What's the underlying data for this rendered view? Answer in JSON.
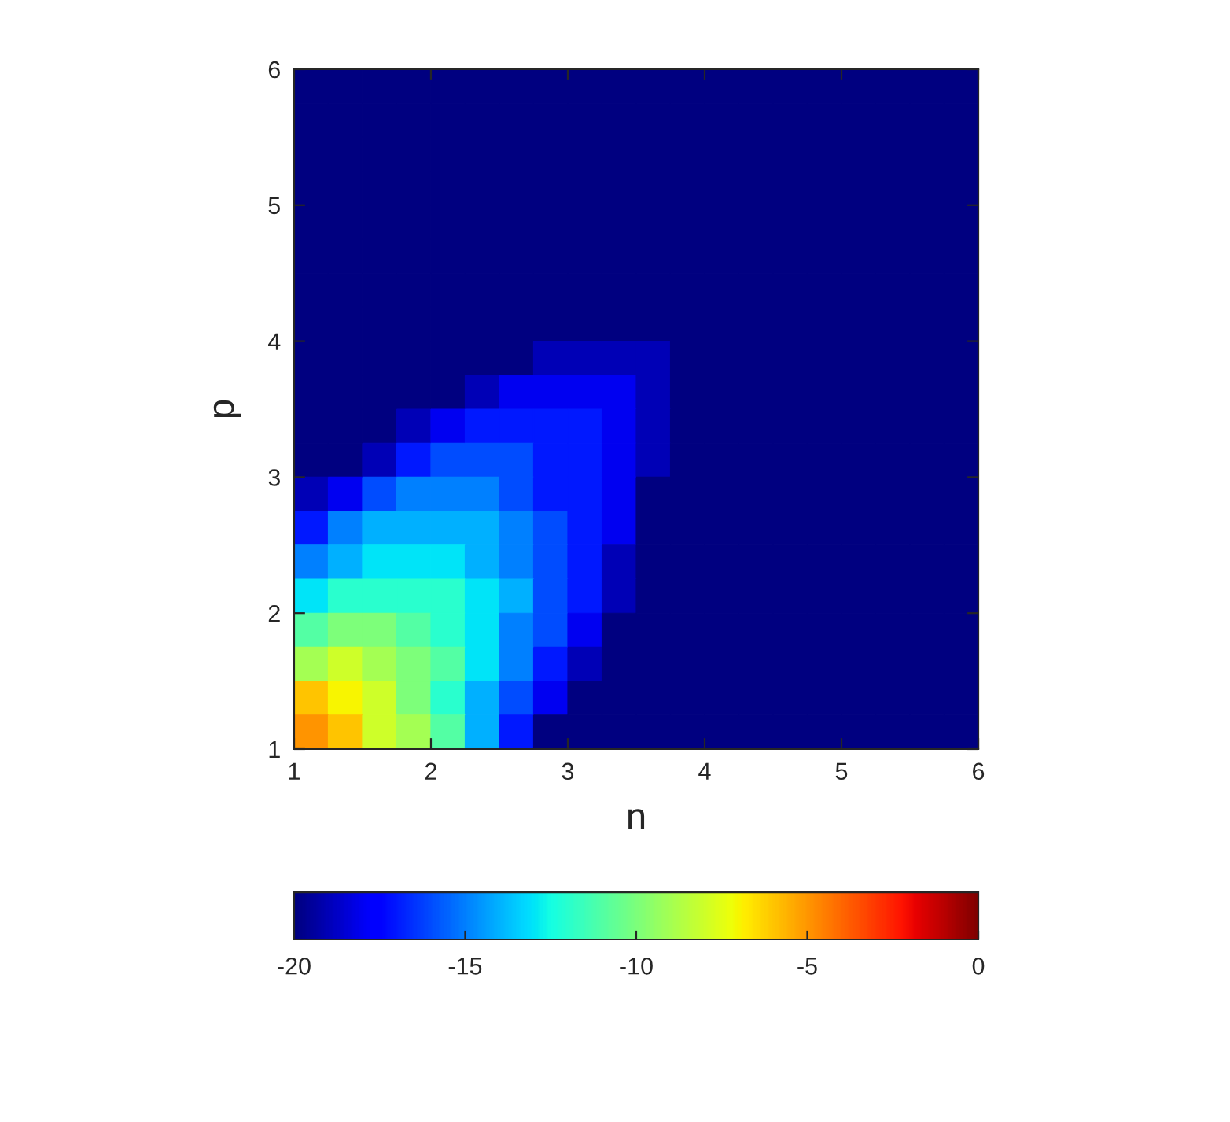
{
  "chart_data": {
    "type": "heatmap",
    "xlabel": "n",
    "ylabel": "p",
    "cells": [
      [
        -20,
        -20,
        -20,
        -20,
        -20,
        -20,
        -20,
        -20,
        -20,
        -20,
        -20,
        -20,
        -20,
        -20,
        -20,
        -20,
        -20,
        -20,
        -20,
        -20
      ],
      [
        -20,
        -20,
        -20,
        -20,
        -20,
        -20,
        -20,
        -20,
        -20,
        -20,
        -20,
        -20,
        -20,
        -20,
        -20,
        -20,
        -20,
        -20,
        -20,
        -20
      ],
      [
        -20,
        -20,
        -20,
        -20,
        -20,
        -20,
        -20,
        -20,
        -20,
        -20,
        -20,
        -20,
        -20,
        -20,
        -20,
        -20,
        -20,
        -20,
        -20,
        -20
      ],
      [
        -20,
        -20,
        -20,
        -20,
        -20,
        -20,
        -20,
        -20,
        -20,
        -20,
        -20,
        -20,
        -20,
        -20,
        -20,
        -20,
        -20,
        -20,
        -20,
        -20
      ],
      [
        -20,
        -20,
        -20,
        -20,
        -20,
        -20,
        -20,
        -20,
        -20,
        -20,
        -20,
        -20,
        -20,
        -20,
        -20,
        -20,
        -20,
        -20,
        -20,
        -20
      ],
      [
        -20,
        -20,
        -20,
        -20,
        -20,
        -20,
        -20,
        -20,
        -20,
        -20,
        -20,
        -20,
        -20,
        -20,
        -20,
        -20,
        -20,
        -20,
        -20,
        -20
      ],
      [
        -20,
        -20,
        -20,
        -20,
        -20,
        -20,
        -20,
        -20,
        -20,
        -20,
        -20,
        -20,
        -20,
        -20,
        -20,
        -20,
        -20,
        -20,
        -20,
        -20
      ],
      [
        -20,
        -20,
        -20,
        -20,
        -20,
        -20,
        -20,
        -20,
        -20,
        -20,
        -20,
        -20,
        -20,
        -20,
        -20,
        -20,
        -20,
        -20,
        -20,
        -20
      ],
      [
        -20,
        -20,
        -20,
        -20,
        -20,
        -20,
        -20,
        -19,
        -19,
        -19,
        -19,
        -20,
        -20,
        -20,
        -20,
        -20,
        -20,
        -20,
        -20,
        -20
      ],
      [
        -20,
        -20,
        -20,
        -20,
        -20,
        -19,
        -18,
        -18,
        -18,
        -18,
        -19,
        -20,
        -20,
        -20,
        -20,
        -20,
        -20,
        -20,
        -20,
        -20
      ],
      [
        -20,
        -20,
        -20,
        -19,
        -18,
        -17,
        -17,
        -17,
        -17,
        -18,
        -19,
        -20,
        -20,
        -20,
        -20,
        -20,
        -20,
        -20,
        -20,
        -20
      ],
      [
        -20,
        -20,
        -19,
        -17,
        -16,
        -16,
        -16,
        -17,
        -17,
        -18,
        -19,
        -20,
        -20,
        -20,
        -20,
        -20,
        -20,
        -20,
        -20,
        -20
      ],
      [
        -19,
        -18,
        -16,
        -15,
        -15,
        -15,
        -16,
        -17,
        -17,
        -18,
        -20,
        -20,
        -20,
        -20,
        -20,
        -20,
        -20,
        -20,
        -20,
        -20
      ],
      [
        -17,
        -15,
        -14,
        -14,
        -14,
        -14,
        -15,
        -16,
        -17,
        -18,
        -20,
        -20,
        -20,
        -20,
        -20,
        -20,
        -20,
        -20,
        -20,
        -20
      ],
      [
        -15,
        -14,
        -13,
        -13,
        -13,
        -14,
        -15,
        -16,
        -17,
        -19,
        -20,
        -20,
        -20,
        -20,
        -20,
        -20,
        -20,
        -20,
        -20,
        -20
      ],
      [
        -13,
        -12,
        -12,
        -12,
        -12,
        -13,
        -14,
        -16,
        -17,
        -19,
        -20,
        -20,
        -20,
        -20,
        -20,
        -20,
        -20,
        -20,
        -20,
        -20
      ],
      [
        -11,
        -10,
        -10,
        -11,
        -12,
        -13,
        -15,
        -16,
        -18,
        -20,
        -20,
        -20,
        -20,
        -20,
        -20,
        -20,
        -20,
        -20,
        -20,
        -20
      ],
      [
        -9,
        -8,
        -9,
        -10,
        -11,
        -13,
        -15,
        -17,
        -19,
        -20,
        -20,
        -20,
        -20,
        -20,
        -20,
        -20,
        -20,
        -20,
        -20,
        -20
      ],
      [
        -6,
        -7,
        -8,
        -10,
        -12,
        -14,
        -16,
        -18,
        -20,
        -20,
        -20,
        -20,
        -20,
        -20,
        -20,
        -20,
        -20,
        -20,
        -20,
        -20
      ],
      [
        -5,
        -6,
        -8,
        -9,
        -11,
        -14,
        -17,
        -20,
        -20,
        -20,
        -20,
        -20,
        -20,
        -20,
        -20,
        -20,
        -20,
        -20,
        -20,
        -20
      ]
    ],
    "xlim": [
      1,
      6
    ],
    "ylim": [
      1,
      6
    ],
    "xticks": [
      1,
      2,
      3,
      4,
      5,
      6
    ],
    "yticks": [
      1,
      2,
      3,
      4,
      5,
      6
    ],
    "clim": [
      -20,
      0
    ],
    "cticks": [
      -20,
      -15,
      -10,
      -5,
      0
    ]
  }
}
